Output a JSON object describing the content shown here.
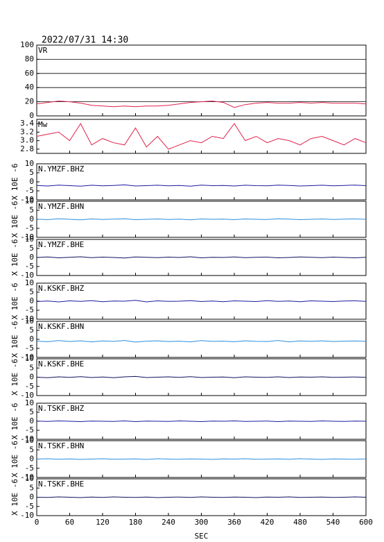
{
  "title": "2022/07/31 14:30",
  "chart_data": [
    {
      "type": "line",
      "title": "VR",
      "ylim": [
        0,
        100
      ],
      "yticks": [
        0,
        20,
        40,
        60,
        80,
        100
      ],
      "grid": true,
      "x": [
        0,
        20,
        40,
        60,
        80,
        100,
        120,
        140,
        160,
        180,
        200,
        220,
        240,
        260,
        280,
        300,
        320,
        340,
        360,
        380,
        400,
        420,
        440,
        460,
        480,
        500,
        520,
        540,
        560,
        580,
        600
      ],
      "series": [
        {
          "color": "#e0204a",
          "values": [
            17,
            19,
            21,
            20,
            18,
            15,
            14,
            13,
            14,
            13,
            14,
            14,
            15,
            17,
            19,
            20,
            21,
            19,
            12,
            16,
            18,
            19,
            18,
            18,
            19,
            18,
            19,
            18,
            18,
            18,
            17
          ]
        }
      ]
    },
    {
      "type": "line",
      "title": "Mw",
      "ylim": [
        2.7,
        3.5
      ],
      "yticks": [
        2.8,
        {
          "value": 3,
          "label": "3.0"
        },
        3.2,
        3.4
      ],
      "grid": false,
      "x": [
        0,
        20,
        40,
        60,
        80,
        100,
        120,
        140,
        160,
        180,
        200,
        220,
        240,
        260,
        280,
        300,
        320,
        340,
        360,
        380,
        400,
        420,
        440,
        460,
        480,
        500,
        520,
        540,
        560,
        580,
        600
      ],
      "series": [
        {
          "color": "#e0204a",
          "values": [
            3.1,
            3.15,
            3.2,
            3.0,
            3.4,
            2.9,
            3.05,
            2.95,
            2.9,
            3.3,
            2.85,
            3.1,
            2.8,
            2.9,
            3.0,
            2.95,
            3.1,
            3.05,
            3.4,
            3.0,
            3.1,
            2.95,
            3.05,
            3.0,
            2.9,
            3.05,
            3.1,
            3.0,
            2.9,
            3.05,
            2.95
          ]
        }
      ]
    },
    {
      "type": "line",
      "title": "N.YMZF.BHZ",
      "ylabel": "X 10E -6",
      "ylim": [
        -10,
        10
      ],
      "yticks": [
        -10,
        -5,
        0,
        5,
        10
      ],
      "x": [
        0,
        20,
        40,
        60,
        80,
        100,
        120,
        140,
        160,
        180,
        200,
        220,
        240,
        260,
        280,
        300,
        320,
        340,
        360,
        380,
        400,
        420,
        440,
        460,
        480,
        500,
        520,
        540,
        560,
        580,
        600
      ],
      "series": [
        {
          "color": "#1a1aa0",
          "values": [
            -2,
            -2.3,
            -1.8,
            -2.1,
            -2.4,
            -1.9,
            -2.2,
            -2,
            -1.7,
            -2.3,
            -2.1,
            -1.9,
            -2.2,
            -2,
            -2.4,
            -1.8,
            -2.1,
            -2,
            -2.3,
            -1.9,
            -2.1,
            -2.2,
            -1.8,
            -2,
            -2.3,
            -2.1,
            -1.9,
            -2.2,
            -2,
            -1.8,
            -2.1
          ]
        }
      ]
    },
    {
      "type": "line",
      "title": "N.YMZF.BHN",
      "ylabel": "X 10E -6",
      "ylim": [
        -10,
        10
      ],
      "yticks": [
        -10,
        -5,
        0,
        5,
        10
      ],
      "x": [
        0,
        20,
        40,
        60,
        80,
        100,
        120,
        140,
        160,
        180,
        200,
        220,
        240,
        260,
        280,
        300,
        320,
        340,
        360,
        380,
        400,
        420,
        440,
        460,
        480,
        500,
        520,
        540,
        560,
        580,
        600
      ],
      "series": [
        {
          "color": "#2a8fe0",
          "values": [
            0.1,
            -0.2,
            0.3,
            0,
            -0.3,
            0.2,
            -0.1,
            0.1,
            0.3,
            -0.2,
            0,
            0.2,
            -0.1,
            0.1,
            -0.3,
            0.2,
            0,
            0.1,
            -0.2,
            0.2,
            0,
            -0.1,
            0.3,
            0.1,
            -0.2,
            0,
            0.2,
            -0.1,
            0.1,
            0.2,
            0
          ]
        }
      ]
    },
    {
      "type": "line",
      "title": "N.YMZF.BHE",
      "ylabel": "X 10E -6",
      "ylim": [
        -10,
        10
      ],
      "yticks": [
        -10,
        -5,
        0,
        5,
        10
      ],
      "x": [
        0,
        20,
        40,
        60,
        80,
        100,
        120,
        140,
        160,
        180,
        200,
        220,
        240,
        260,
        280,
        300,
        320,
        340,
        360,
        380,
        400,
        420,
        440,
        460,
        480,
        500,
        520,
        540,
        560,
        580,
        600
      ],
      "series": [
        {
          "color": "#101060",
          "values": [
            0,
            0.3,
            -0.2,
            0.1,
            0.4,
            -0.1,
            0.2,
            0,
            -0.3,
            0.3,
            0.1,
            -0.1,
            0.2,
            0,
            0.4,
            -0.2,
            0.1,
            0,
            0.3,
            -0.1,
            0.1,
            0.2,
            -0.2,
            0,
            0.3,
            0.1,
            -0.1,
            0.2,
            0,
            -0.2,
            0.1
          ]
        }
      ]
    },
    {
      "type": "line",
      "title": "N.KSKF.BHZ",
      "ylabel": "X 10E -6",
      "ylim": [
        -10,
        10
      ],
      "yticks": [
        -10,
        -5,
        0,
        5,
        10
      ],
      "x": [
        0,
        20,
        40,
        60,
        80,
        100,
        120,
        140,
        160,
        180,
        200,
        220,
        240,
        260,
        280,
        300,
        320,
        340,
        360,
        380,
        400,
        420,
        440,
        460,
        480,
        500,
        520,
        540,
        560,
        580,
        600
      ],
      "series": [
        {
          "color": "#1a1aa0",
          "values": [
            -0.2,
            0.1,
            -0.4,
            0.2,
            -0.1,
            0.3,
            -0.3,
            0.1,
            0,
            0.5,
            -0.4,
            0.2,
            -0.1,
            0,
            0.3,
            -0.2,
            0.1,
            -0.3,
            0.2,
            0,
            -0.2,
            0.3,
            -0.1,
            0.1,
            -0.3,
            0.2,
            0,
            -0.2,
            0.1,
            0.2,
            -0.1
          ]
        }
      ]
    },
    {
      "type": "line",
      "title": "N.KSKF.BHN",
      "ylabel": "X 10E -6",
      "ylim": [
        -10,
        10
      ],
      "yticks": [
        -10,
        -5,
        0,
        5,
        10
      ],
      "x": [
        0,
        20,
        40,
        60,
        80,
        100,
        120,
        140,
        160,
        180,
        200,
        220,
        240,
        260,
        280,
        300,
        320,
        340,
        360,
        380,
        400,
        420,
        440,
        460,
        480,
        500,
        520,
        540,
        560,
        580,
        600
      ],
      "series": [
        {
          "color": "#2a8fe0",
          "values": [
            -1,
            -1.3,
            -0.7,
            -1.2,
            -0.8,
            -1.4,
            -0.9,
            -1.1,
            -0.6,
            -1.5,
            -1,
            -0.8,
            -1.2,
            -1,
            -1.4,
            -0.7,
            -1.1,
            -1,
            -1.3,
            -0.8,
            -1.1,
            -1.2,
            -0.6,
            -1.4,
            -0.9,
            -1.1,
            -0.8,
            -1.2,
            -1,
            -0.9,
            -1.1
          ]
        }
      ]
    },
    {
      "type": "line",
      "title": "N.KSKF.BHE",
      "ylabel": "X 10E -6",
      "ylim": [
        -10,
        10
      ],
      "yticks": [
        -10,
        -5,
        0,
        5,
        10
      ],
      "x": [
        0,
        20,
        40,
        60,
        80,
        100,
        120,
        140,
        160,
        180,
        200,
        220,
        240,
        260,
        280,
        300,
        320,
        340,
        360,
        380,
        400,
        420,
        440,
        460,
        480,
        500,
        520,
        540,
        560,
        580,
        600
      ],
      "series": [
        {
          "color": "#101060",
          "values": [
            0,
            -0.3,
            0.2,
            -0.1,
            0.3,
            -0.2,
            0.1,
            -0.3,
            0.2,
            0.4,
            -0.2,
            0,
            0.2,
            -0.1,
            0.3,
            -0.2,
            0,
            0.1,
            -0.3,
            0.2,
            0,
            -0.1,
            0.2,
            -0.2,
            0.1,
            0,
            0.2,
            -0.1,
            0,
            0.1,
            -0.1
          ]
        }
      ]
    },
    {
      "type": "line",
      "title": "N.TSKF.BHZ",
      "ylabel": "X 10E -6",
      "ylim": [
        -10,
        10
      ],
      "yticks": [
        -10,
        -5,
        0,
        5,
        10
      ],
      "x": [
        0,
        20,
        40,
        60,
        80,
        100,
        120,
        140,
        160,
        180,
        200,
        220,
        240,
        260,
        280,
        300,
        320,
        340,
        360,
        380,
        400,
        420,
        440,
        460,
        480,
        500,
        520,
        540,
        560,
        580,
        600
      ],
      "series": [
        {
          "color": "#1a1aa0",
          "values": [
            0.1,
            -0.1,
            0.2,
            0,
            -0.2,
            0.1,
            0,
            -0.1,
            0.2,
            -0.2,
            0.1,
            0,
            -0.1,
            0.2,
            0,
            -0.2,
            0.1,
            0,
            0.2,
            -0.1,
            0,
            0.1,
            -0.2,
            0.1,
            0,
            -0.1,
            0.2,
            0,
            -0.1,
            0.1,
            0
          ]
        }
      ]
    },
    {
      "type": "line",
      "title": "N.TSKF.BHN",
      "ylabel": "X 10E -6",
      "ylim": [
        -10,
        10
      ],
      "yticks": [
        -10,
        -5,
        0,
        5,
        10
      ],
      "x": [
        0,
        20,
        40,
        60,
        80,
        100,
        120,
        140,
        160,
        180,
        200,
        220,
        240,
        260,
        280,
        300,
        320,
        340,
        360,
        380,
        400,
        420,
        440,
        460,
        480,
        500,
        520,
        540,
        560,
        580,
        600
      ],
      "series": [
        {
          "color": "#2a8fe0",
          "values": [
            0,
            0.2,
            -0.1,
            0.1,
            -0.2,
            0,
            0.2,
            -0.1,
            0,
            0.1,
            -0.2,
            0.2,
            0,
            -0.1,
            0.1,
            0,
            -0.2,
            0.1,
            0,
            0.2,
            -0.1,
            0,
            0.1,
            -0.1,
            0.2,
            0,
            -0.2,
            0.1,
            0,
            -0.1,
            0.1
          ]
        }
      ]
    },
    {
      "type": "line",
      "title": "N.TSKF.BHE",
      "ylabel": "X 10E -6",
      "ylim": [
        -10,
        10
      ],
      "yticks": [
        -10,
        -5,
        0,
        5,
        10
      ],
      "xlim": [
        0,
        600
      ],
      "xticks": [
        0,
        60,
        120,
        180,
        240,
        300,
        360,
        420,
        480,
        540,
        600
      ],
      "xlabel": "SEC",
      "x": [
        0,
        20,
        40,
        60,
        80,
        100,
        120,
        140,
        160,
        180,
        200,
        220,
        240,
        260,
        280,
        300,
        320,
        340,
        360,
        380,
        400,
        420,
        440,
        460,
        480,
        500,
        520,
        540,
        560,
        580,
        600
      ],
      "series": [
        {
          "color": "#101060",
          "values": [
            0,
            -0.1,
            0.2,
            0,
            -0.2,
            0.1,
            -0.1,
            0.2,
            0,
            -0.1,
            0.1,
            -0.2,
            0,
            0.1,
            -0.1,
            0.2,
            0,
            -0.1,
            0.1,
            0,
            -0.2,
            0.1,
            0,
            0.2,
            -0.1,
            0,
            0.1,
            -0.1,
            0,
            0.2,
            0
          ]
        }
      ]
    }
  ]
}
